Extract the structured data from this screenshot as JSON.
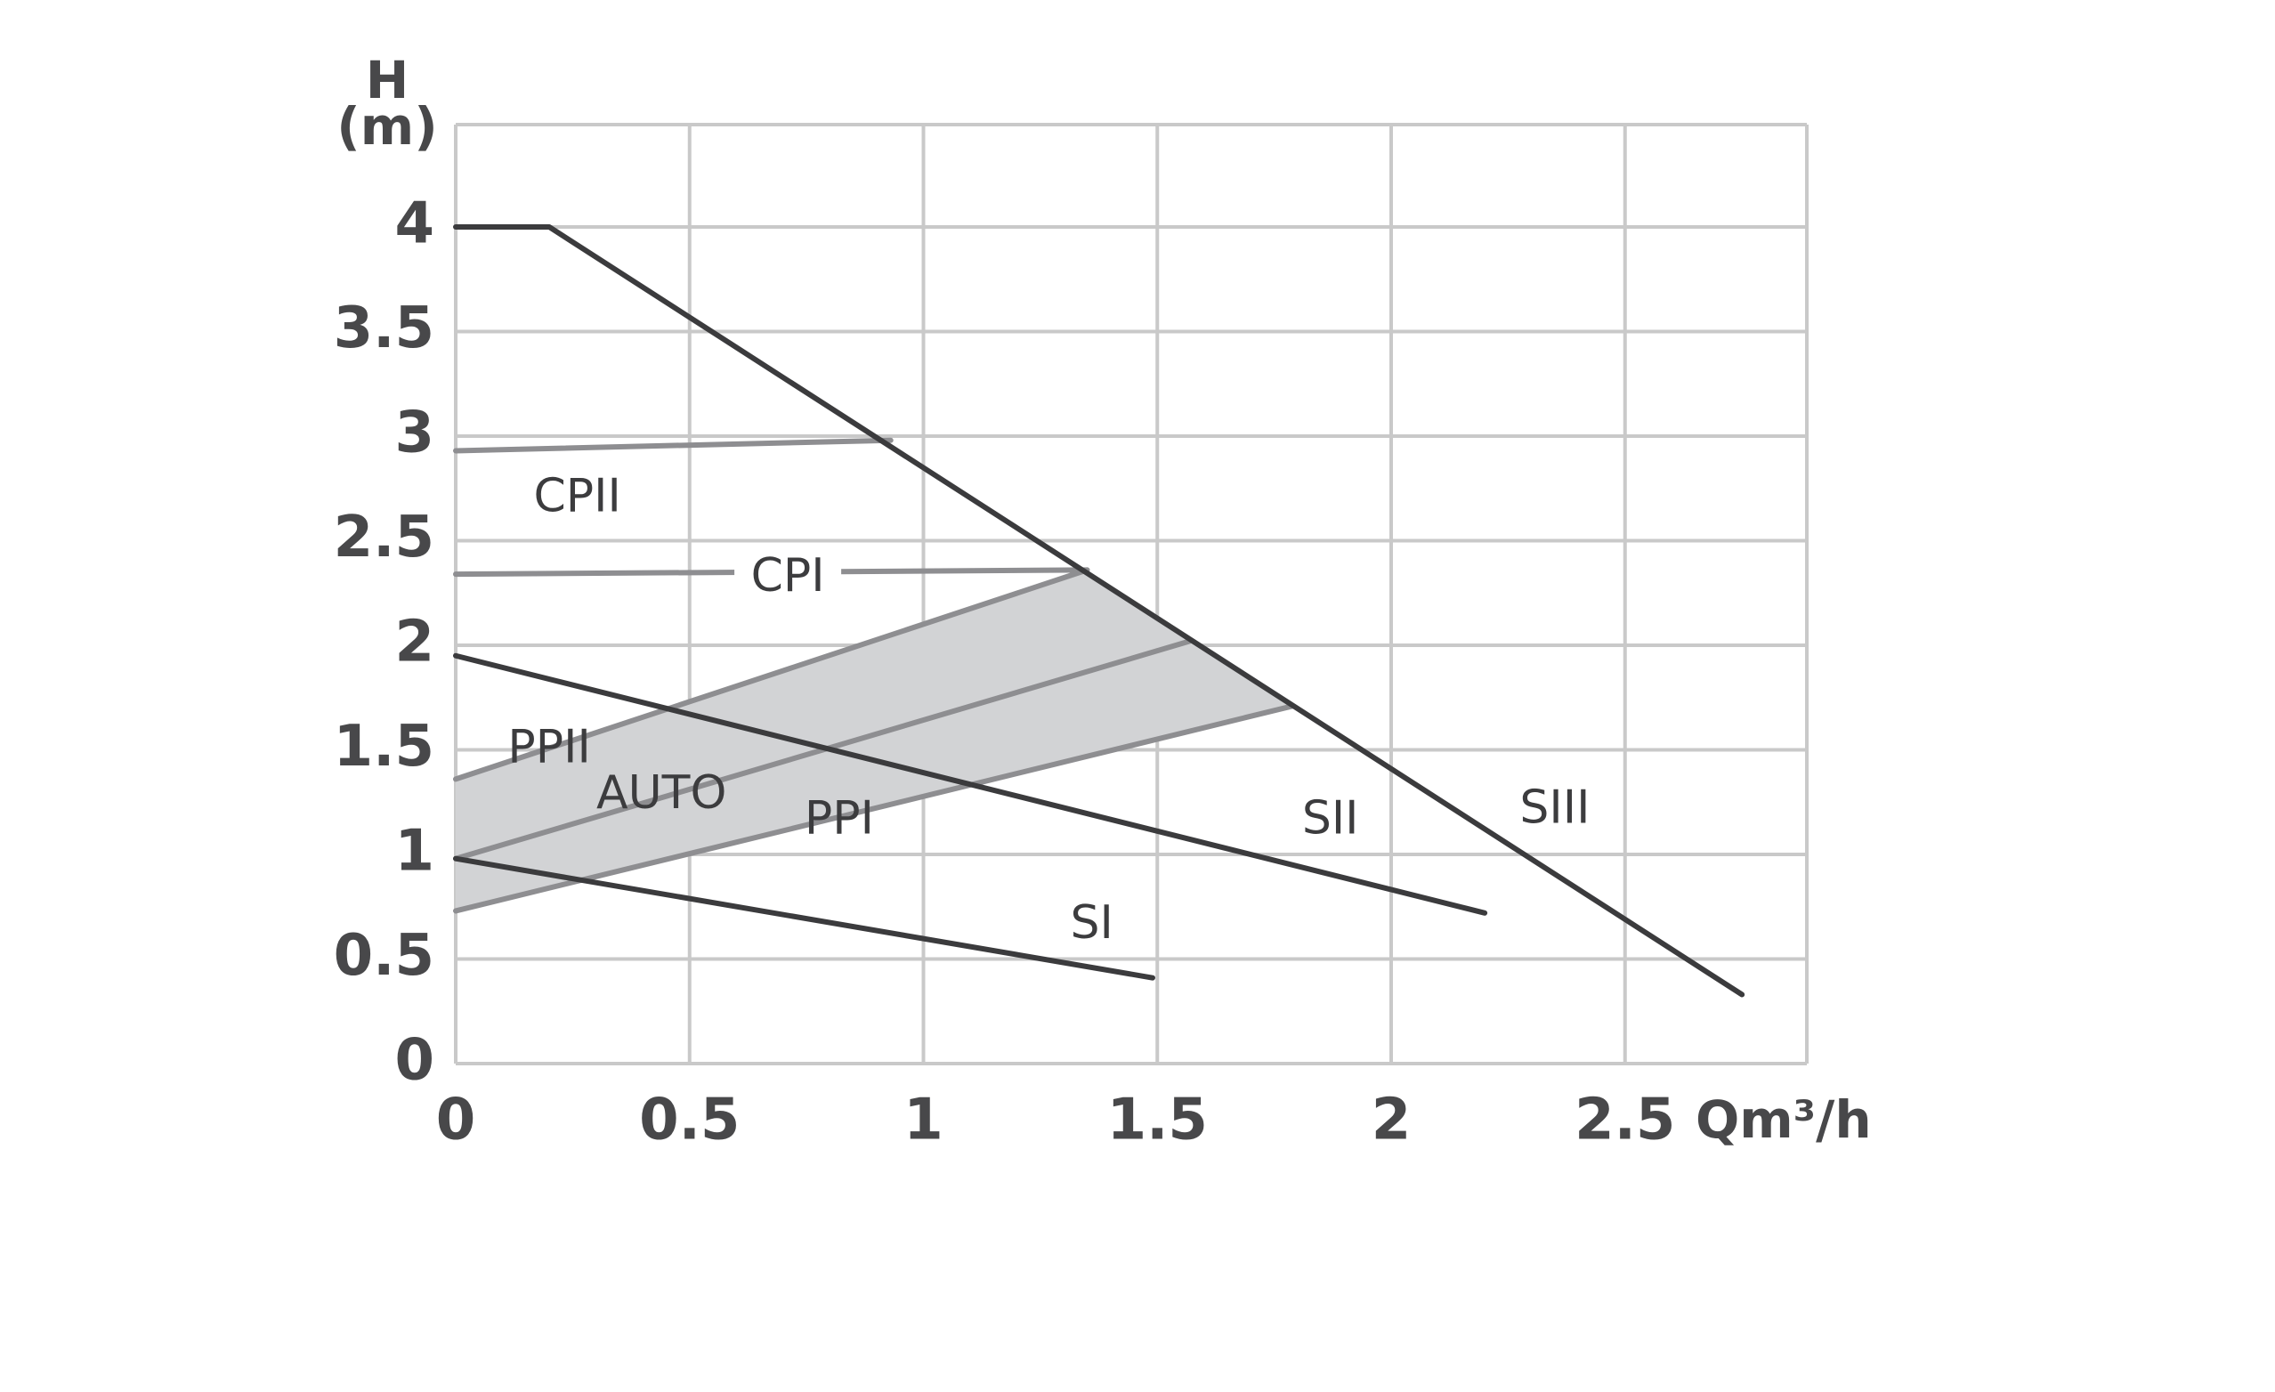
{
  "chart_data": {
    "type": "line",
    "xlabel": "Qm³/h",
    "ylabel": "H (m)",
    "ylabel_lines": [
      "H",
      "(m)"
    ],
    "xlim": [
      0,
      2.9
    ],
    "ylim": [
      0,
      4.5
    ],
    "x_ticks": [
      {
        "value": 0,
        "label": "0"
      },
      {
        "value": 0.5,
        "label": "0.5"
      },
      {
        "value": 1,
        "label": "1"
      },
      {
        "value": 1.5,
        "label": "1.5"
      },
      {
        "value": 2,
        "label": "2"
      },
      {
        "value": 2.5,
        "label": "2.5"
      }
    ],
    "y_ticks": [
      {
        "value": 0,
        "label": "0"
      },
      {
        "value": 0.5,
        "label": "0.5"
      },
      {
        "value": 1,
        "label": "1"
      },
      {
        "value": 1.5,
        "label": "1.5"
      },
      {
        "value": 2,
        "label": "2"
      },
      {
        "value": 2.5,
        "label": "2.5"
      },
      {
        "value": 3,
        "label": "3"
      },
      {
        "value": 3.5,
        "label": "3.5"
      },
      {
        "value": 4,
        "label": "4"
      }
    ],
    "grid": true,
    "legend": "none",
    "colors": {
      "grid": "#c9c9c9",
      "dark_series": "#3b3b3d",
      "light_series": "#8e8e91",
      "band_fill": "#d2d3d5",
      "text": "#48484a"
    },
    "series": [
      {
        "name": "SIII",
        "style": "dark",
        "x": [
          0,
          0.2,
          2.75
        ],
        "y": [
          4,
          4,
          0.33
        ]
      },
      {
        "name": "SII",
        "style": "dark",
        "x": [
          0,
          2.2
        ],
        "y": [
          1.95,
          0.72
        ]
      },
      {
        "name": "SI",
        "style": "dark",
        "x": [
          0,
          1.49
        ],
        "y": [
          0.98,
          0.41
        ]
      },
      {
        "name": "CPII",
        "style": "light",
        "x": [
          0,
          0.93
        ],
        "y": [
          2.93,
          2.98
        ]
      },
      {
        "name": "CPI",
        "style": "light",
        "x": [
          0,
          1.35
        ],
        "y": [
          2.34,
          2.36
        ]
      },
      {
        "name": "PPII",
        "style": "light",
        "x": [
          0,
          1.35
        ],
        "y": [
          1.36,
          2.36
        ]
      },
      {
        "name": "AUTO",
        "style": "light",
        "x": [
          0,
          1.57
        ],
        "y": [
          0.98,
          2.02
        ]
      },
      {
        "name": "PPI",
        "style": "light",
        "x": [
          0,
          1.79
        ],
        "y": [
          0.73,
          1.71
        ]
      }
    ],
    "bands": [
      {
        "name": "AUTO",
        "polygon_x": [
          0,
          1.35,
          1.79,
          0
        ],
        "polygon_y": [
          1.36,
          2.36,
          1.71,
          0.73
        ]
      }
    ],
    "annotations": [
      {
        "text": "CPII",
        "x": 0.26,
        "y": 2.7
      },
      {
        "text": "CPI",
        "x": 0.71,
        "y": 2.32
      },
      {
        "text": "PPII",
        "x": 0.2,
        "y": 1.5
      },
      {
        "text": "AUTO",
        "x": 0.44,
        "y": 1.28
      },
      {
        "text": "PPI",
        "x": 0.82,
        "y": 1.16
      },
      {
        "text": "SII",
        "x": 1.87,
        "y": 1.16
      },
      {
        "text": "SIII",
        "x": 2.35,
        "y": 1.21
      },
      {
        "text": "SI",
        "x": 1.36,
        "y": 0.66
      }
    ]
  }
}
